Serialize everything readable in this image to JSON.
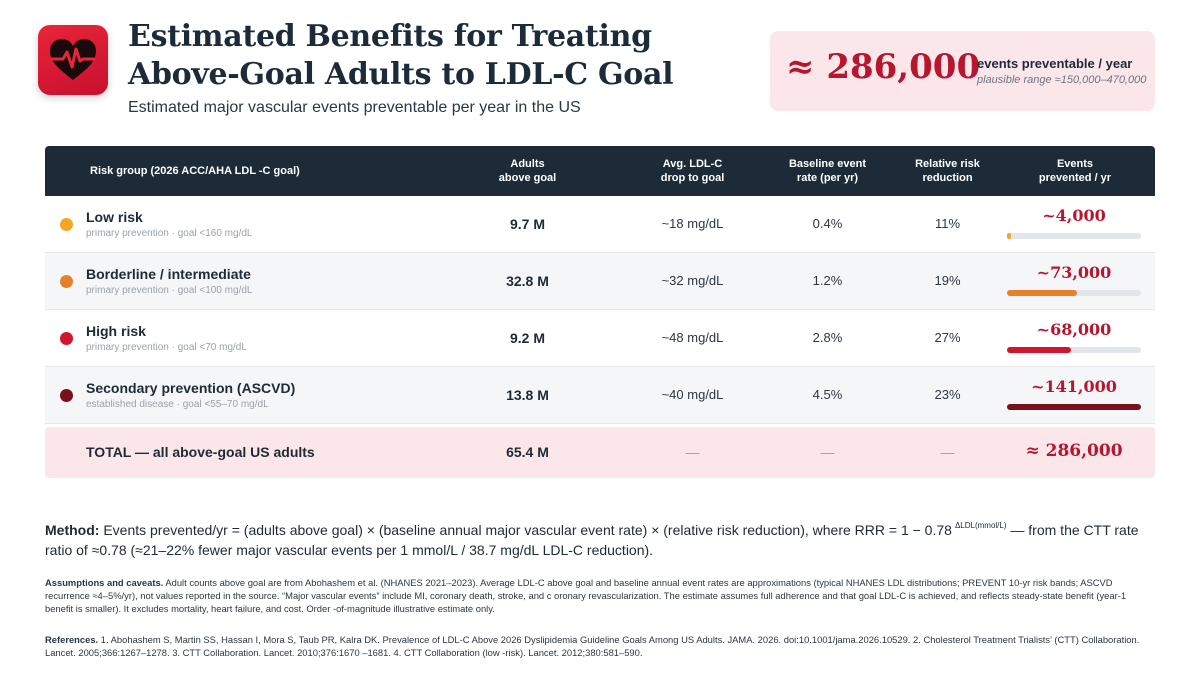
{
  "header": {
    "title": "Estimated Benefits for Treating Above-Goal Adults to LDL-C Goal",
    "subtitle": "Estimated major vascular events preventable per year in the US",
    "logo_icon": "heart-pulse-icon"
  },
  "headline": {
    "value": "≈ 286,000",
    "label": "events preventable / year",
    "range": "plausible range ≈150,000–470,000"
  },
  "table": {
    "columns": [
      "Risk group (2026 ACC/AHA LDL -C goal)",
      "Adults\nabove goal",
      "Avg. LDL-C\ndrop to goal",
      "Baseline event\nrate (per yr)",
      "Relative risk\nreduction",
      "Events\nprevented / yr"
    ],
    "rows": [
      {
        "name": "Low risk",
        "sub": "primary prevention · goal <160 mg/dL",
        "adults": "9.7 M",
        "drop": "~18 mg/dL",
        "rate": "0.4%",
        "rrr": "11%",
        "events": "~4,000",
        "events_fraction": 0.03,
        "color": "#f5a623"
      },
      {
        "name": "Borderline / intermediate",
        "sub": "primary prevention · goal <100 mg/dL",
        "adults": "32.8 M",
        "drop": "~32 mg/dL",
        "rate": "1.2%",
        "rrr": "19%",
        "events": "~73,000",
        "events_fraction": 0.52,
        "color": "#e8802a"
      },
      {
        "name": "High risk",
        "sub": "primary prevention · goal <70 mg/dL",
        "adults": "9.2 M",
        "drop": "~48 mg/dL",
        "rate": "2.8%",
        "rrr": "27%",
        "events": "~68,000",
        "events_fraction": 0.48,
        "color": "#d0152e"
      },
      {
        "name": "Secondary prevention (ASCVD)",
        "sub": "established disease · goal <55–70 mg/dL",
        "adults": "13.8 M",
        "drop": "~40 mg/dL",
        "rate": "4.5%",
        "rrr": "23%",
        "events": "~141,000",
        "events_fraction": 1.0,
        "color": "#7a0f1e"
      }
    ],
    "total": {
      "label": "TOTAL — all above-goal US adults",
      "adults": "65.4 M",
      "dash": "—",
      "events": "≈ 286,000"
    }
  },
  "method": {
    "label": "Method:",
    "text_a": "Events prevented/yr = (adults above goal)   × (baseline annual major vascular event rate) × (relative risk reduction), where RRR = 1 − 0.78",
    "exponent": "ΔLDL(mmol/L)",
    "text_b": "— from the CTT rate ratio of ≈0.78 (≈21–22% fewer major vascular events per 1 mmol/L / 38.7 mg/dL LDL-C reduction)."
  },
  "assumptions": {
    "label": "Assumptions and caveats.",
    "text": "Adult counts above goal are from Abohashem et al. (NHANES 2021–2023). Average LDL-C above goal and baseline annual event rates are approximations (typical NHANES LDL distributions; PREVENT 10-yr risk bands; ASCVD recurrence ≈4–5%/yr), not values reported in the source. “Major vascular events” include MI, coronary death, stroke, and c oronary revascularization. The estimate assumes full adherence and that goal LDL-C is achieved, and reflects steady-state benefit (year-1 benefit is smaller). It excludes mortality, heart failure, and cost. Order -of-magnitude illustrative estimate only."
  },
  "references": {
    "label": "References.",
    "text": "1. Abohashem S, Martin SS, Hassan I, Mora S, Taub PR, Kalra DK. Prevalence of LDL-C Above 2026 Dyslipidemia Guideline Goals Among US Adults. JAMA. 2026. doi:10.1001/jama.2026.10529. 2. Cholesterol Treatment Trialists’ (CTT) Collaboration. Lancet. 2005;366:1267–1278. 3. CTT Collaboration. Lancet. 2010;376:1670 –1681. 4. CTT Collaboration (low  -risk). Lancet. 2012;380:581–590."
  }
}
